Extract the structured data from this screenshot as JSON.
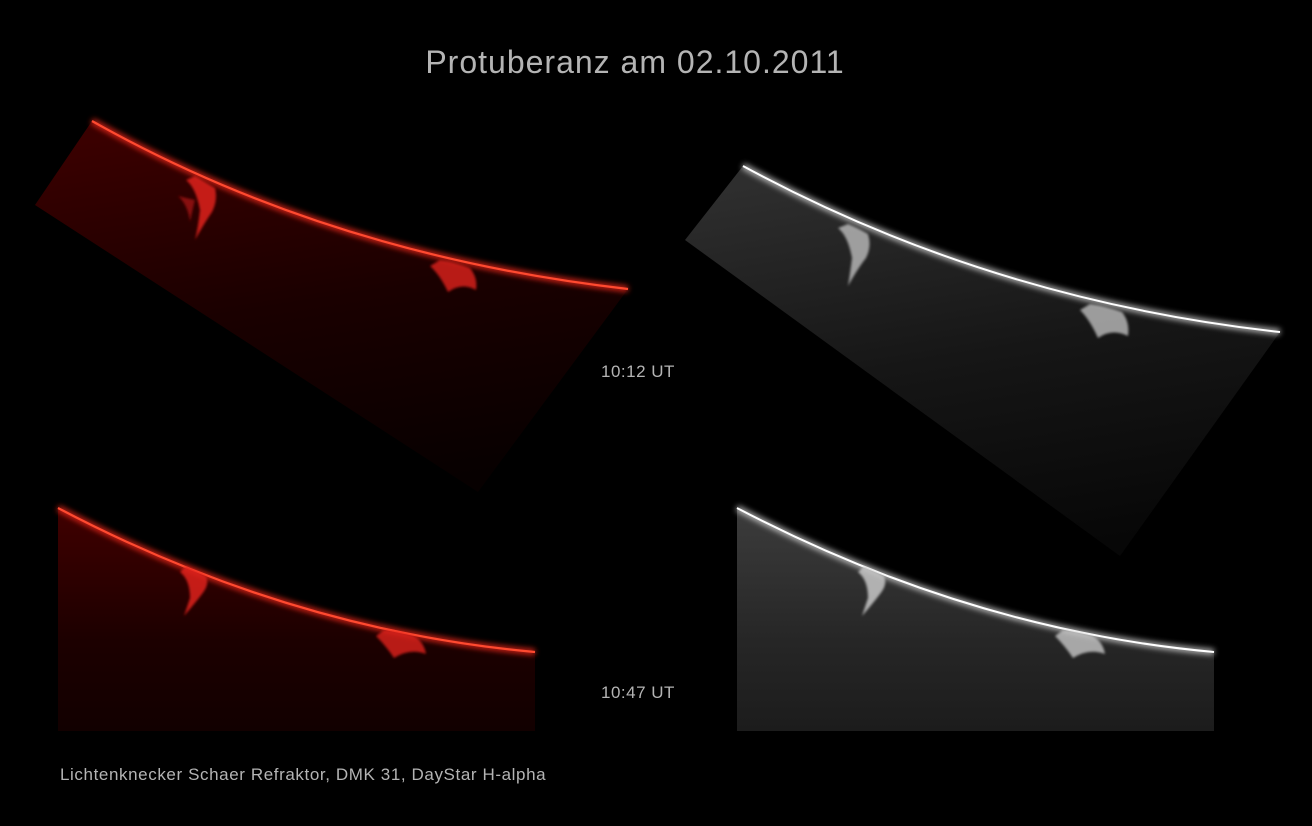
{
  "title": "Protuberanz am 02.10.2011",
  "observations": [
    {
      "time": "10:12 UT",
      "images": [
        {
          "tone": "red",
          "accent": "#ff2a1a"
        },
        {
          "tone": "grayscale",
          "accent": "#f2f2f2"
        }
      ]
    },
    {
      "time": "10:47 UT",
      "images": [
        {
          "tone": "red",
          "accent": "#ff2a1a"
        },
        {
          "tone": "grayscale",
          "accent": "#f2f2f2"
        }
      ]
    }
  ],
  "caption": "Lichtenknecker Schaer Refraktor, DMK 31, DayStar H-alpha",
  "colors": {
    "background": "#000000",
    "text": "#b4b4b4",
    "red_limb": "#ff2a1a",
    "white_limb": "#f2f2f2"
  }
}
